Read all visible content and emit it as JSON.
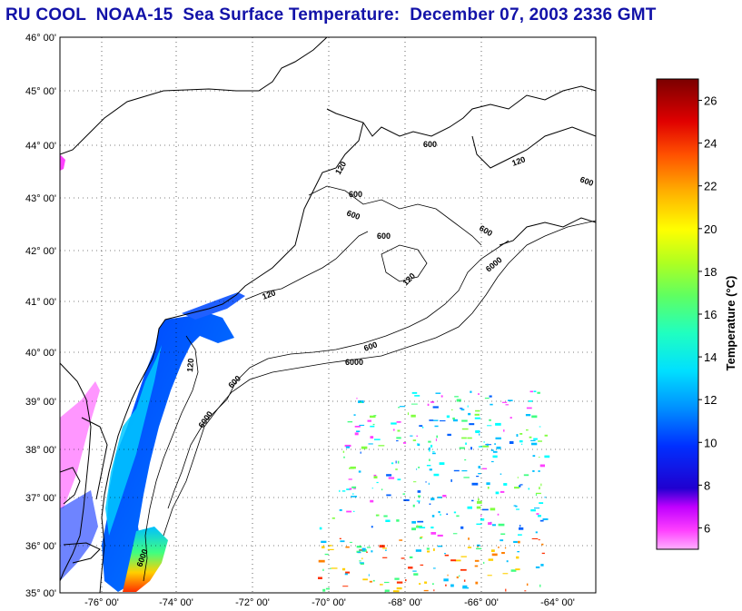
{
  "title": "RU COOL  NOAA-15  Sea Surface Temperature:  December 07, 2003 2336 GMT",
  "map": {
    "lat_labels": [
      "46° 00'",
      "45° 00'",
      "44° 00'",
      "43° 00'",
      "42° 00'",
      "41° 00'",
      "40° 00'",
      "39° 00'",
      "38° 00'",
      "37° 00'",
      "36° 00'",
      "35° 00'"
    ],
    "lon_labels": [
      "-76° 00'",
      "-74° 00'",
      "-72° 00'",
      "-70° 00'",
      "-68° 00'",
      "-66° 00'",
      "-64° 00'"
    ],
    "lat_range": [
      35,
      46
    ],
    "lon_range": [
      -77,
      -64.5
    ],
    "grid": "dotted",
    "isobath_labels": [
      "120",
      "600",
      "6000"
    ]
  },
  "colorbar": {
    "label": "Temperature (°C)",
    "ticks": [
      "26",
      "24",
      "22",
      "20",
      "18",
      "16",
      "14",
      "12",
      "10",
      "8",
      "6"
    ],
    "range": [
      5,
      27
    ],
    "colors": [
      "#ff7fff",
      "#ff40ff",
      "#c000ff",
      "#0000c0",
      "#0020ff",
      "#0080ff",
      "#00c0ff",
      "#00ffff",
      "#40ff80",
      "#80ff40",
      "#d0ff00",
      "#ffff00",
      "#ffd000",
      "#ff9000",
      "#ff4000",
      "#e00000",
      "#a00000",
      "#800000"
    ]
  }
}
